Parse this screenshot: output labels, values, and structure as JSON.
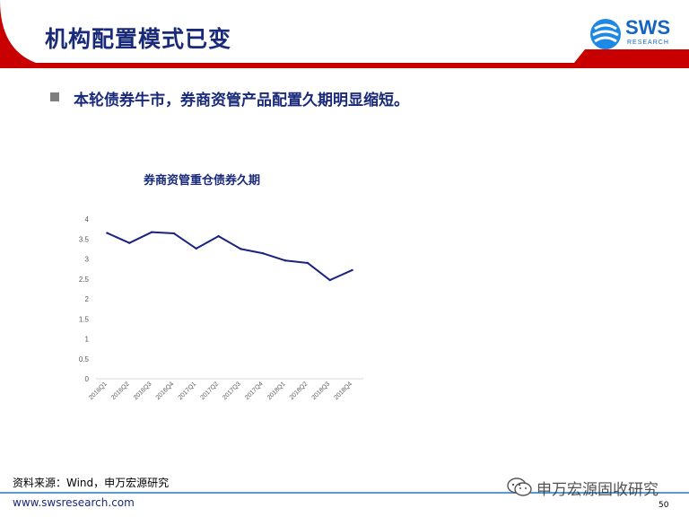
{
  "header": {
    "title": "机构配置模式已变",
    "logo_text": "SWS",
    "logo_sub": "RESEARCH"
  },
  "bullet": {
    "text": "本轮债券牛市，券商资管产品配置久期明显缩短。"
  },
  "chart_data": {
    "type": "line",
    "title": "券商资管重仓债券久期",
    "categories": [
      "2016Q1",
      "2016Q2",
      "2016Q3",
      "2016Q4",
      "2017Q1",
      "2017Q2",
      "2017Q3",
      "2017Q4",
      "2018Q1",
      "2018Q2",
      "2018Q3",
      "2018Q4"
    ],
    "series": [
      {
        "values": [
          3.65,
          3.4,
          3.67,
          3.64,
          3.26,
          3.57,
          3.25,
          3.14,
          2.96,
          2.9,
          2.47,
          2.72
        ]
      }
    ],
    "ylim": [
      0,
      4
    ],
    "yticks": [
      "0",
      "0.5",
      "1",
      "1.5",
      "2",
      "2.5",
      "3",
      "3.5",
      "4"
    ],
    "grid": false,
    "legend": "none",
    "line_color": "#1a237e"
  },
  "footer": {
    "source": "资料来源：Wind，申万宏源研究",
    "website": "www.swsresearch.com",
    "wechat": "申万宏源固收研究",
    "page_number": "50"
  },
  "colors": {
    "title_blue": "#1a2a7a",
    "red": "#c80000",
    "logo_blue": "#1565c0"
  }
}
